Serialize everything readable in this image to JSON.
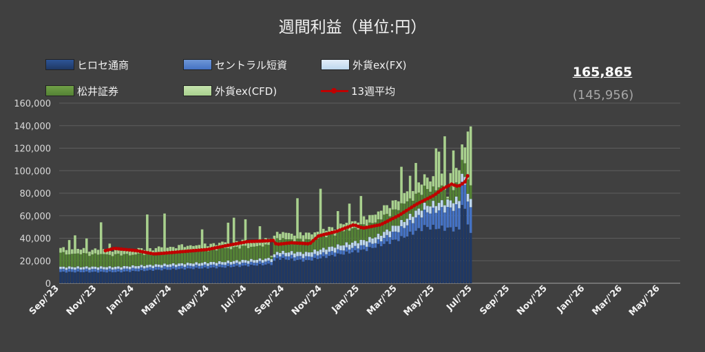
{
  "title": "週間利益（単位:円）",
  "legend": [
    {
      "label": "ヒロセ通商",
      "color": "#1f3864",
      "kind": "bar"
    },
    {
      "label": "セントラル短資",
      "color": "#4472c4",
      "kind": "bar"
    },
    {
      "label": "外貨ex(FX)",
      "color": "#bdd7ee",
      "kind": "bar"
    },
    {
      "label": "松井証券",
      "color": "#548235",
      "kind": "bar"
    },
    {
      "label": "外貨ex(CFD)",
      "color": "#a9d18e",
      "kind": "bar"
    },
    {
      "label": "13週平均",
      "color": "#c00000",
      "kind": "line"
    }
  ],
  "callout": {
    "latest": "165,865",
    "average": "(145,956)"
  },
  "chart_data": {
    "type": "bar",
    "stacked": true,
    "title": "週間利益（単位:円）",
    "ylim": [
      0,
      160000
    ],
    "yticks": [
      "0",
      "20,000",
      "40,000",
      "60,000",
      "80,000",
      "100,000",
      "120,000",
      "140,000",
      "160,000"
    ],
    "xticks": [
      "Sep/'23",
      "Nov/'23",
      "Jan/'24",
      "Mar/'24",
      "May/'24",
      "Jul/'24",
      "Sep/'24",
      "Nov/'24",
      "Jan/'25",
      "Mar/'25",
      "May/'25",
      "Jul/'25",
      "Sep/'25",
      "Nov/'25",
      "Jan/'26",
      "Mar/'26",
      "May/'26"
    ],
    "grid": true,
    "legend_position": "top",
    "series": [
      {
        "name": "ヒロセ通商",
        "color": "#1f3864",
        "keyframes": [
          [
            0,
            10000
          ],
          [
            20,
            10000
          ],
          [
            35,
            12000
          ],
          [
            55,
            14000
          ],
          [
            73,
            17000
          ],
          [
            75,
            22000
          ],
          [
            85,
            20000
          ],
          [
            95,
            25000
          ],
          [
            106,
            30000
          ],
          [
            118,
            40000
          ],
          [
            126,
            50000
          ],
          [
            138,
            48000
          ],
          [
            139,
            72000
          ],
          [
            142,
            45000
          ]
        ]
      },
      {
        "name": "セントラル短資",
        "color": "#4472c4",
        "keyframes": [
          [
            0,
            2500
          ],
          [
            70,
            2500
          ],
          [
            75,
            3000
          ],
          [
            110,
            4000
          ],
          [
            142,
            22000
          ]
        ]
      },
      {
        "name": "外貨ex(FX)",
        "color": "#bdd7ee",
        "keyframes": [
          [
            0,
            2000
          ],
          [
            73,
            2500
          ],
          [
            80,
            3500
          ],
          [
            110,
            5000
          ],
          [
            142,
            7000
          ]
        ]
      },
      {
        "name": "松井証券",
        "color": "#548235",
        "keyframes": [
          [
            0,
            12000
          ],
          [
            30,
            10000
          ],
          [
            60,
            12000
          ],
          [
            90,
            11000
          ],
          [
            120,
            15000
          ],
          [
            142,
            12000
          ]
        ]
      },
      {
        "name": "外貨ex(CFD)",
        "color": "#a9d18e",
        "keyframes": [
          [
            0,
            4000
          ],
          [
            60,
            5000
          ],
          [
            100,
            6000
          ],
          [
            130,
            10000
          ],
          [
            142,
            15000
          ]
        ]
      }
    ],
    "spikes": [
      [
        3,
        1.15
      ],
      [
        5,
        1.2
      ],
      [
        9,
        1.15
      ],
      [
        14,
        1.4
      ],
      [
        17,
        1.1
      ],
      [
        30,
        1.5
      ],
      [
        36,
        1.5
      ],
      [
        49,
        1.2
      ],
      [
        58,
        1.3
      ],
      [
        60,
        1.35
      ],
      [
        64,
        1.3
      ],
      [
        69,
        1.2
      ],
      [
        82,
        1.5
      ],
      [
        90,
        1.6
      ],
      [
        96,
        1.2
      ],
      [
        100,
        1.3
      ],
      [
        104,
        1.3
      ],
      [
        118,
        1.4
      ],
      [
        121,
        1.2
      ],
      [
        123,
        1.3
      ],
      [
        130,
        1.45
      ],
      [
        131,
        1.35
      ],
      [
        133,
        1.6
      ],
      [
        134,
        1.35
      ],
      [
        136,
        1.4
      ],
      [
        141,
        1.45
      ],
      [
        142,
        1.62
      ]
    ],
    "dips": [
      [
        73,
        0.2
      ],
      [
        134,
        0.05
      ]
    ],
    "moving_average_13w": [
      [
        16,
        29000
      ],
      [
        20,
        31000
      ],
      [
        30,
        29000
      ],
      [
        38,
        26000
      ],
      [
        50,
        28000
      ],
      [
        62,
        30000
      ],
      [
        72,
        34000
      ],
      [
        80,
        37000
      ],
      [
        92,
        38000
      ],
      [
        93,
        34500
      ],
      [
        100,
        36000
      ],
      [
        108,
        35000
      ],
      [
        112,
        42000
      ],
      [
        120,
        46000
      ],
      [
        128,
        52000
      ],
      [
        132,
        49000
      ],
      [
        140,
        52000
      ],
      [
        148,
        60000
      ],
      [
        156,
        70000
      ],
      [
        164,
        78000
      ],
      [
        168,
        84000
      ],
      [
        172,
        88000
      ],
      [
        175,
        86000
      ],
      [
        178,
        90000
      ],
      [
        180,
        99000
      ]
    ],
    "x_min": 0,
    "x_max": 215
  }
}
